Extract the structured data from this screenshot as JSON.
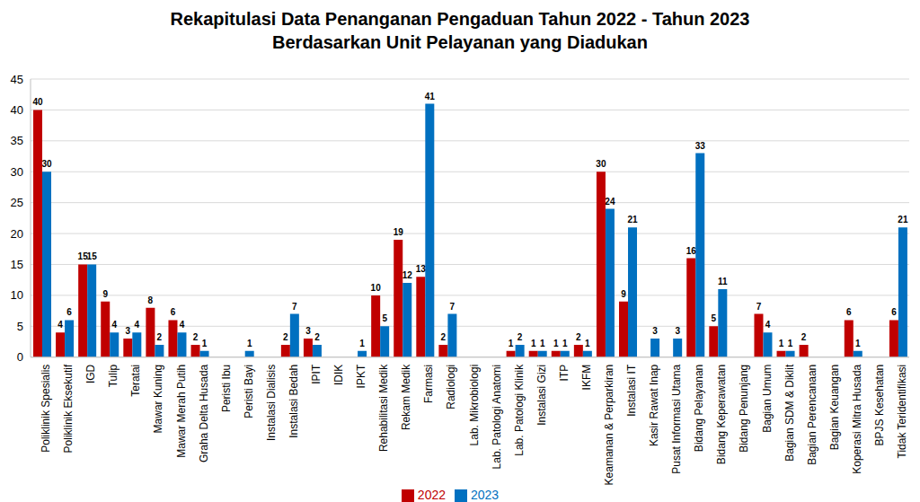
{
  "chart_data": {
    "type": "bar",
    "title": "Rekapitulasi Data Penanganan Pengaduan Tahun 2022 - Tahun 2023",
    "subtitle": "Berdasarkan Unit Pelayanan yang Diadukan",
    "categories": [
      "Poliklinik Spesialis",
      "Poliklinik Eksekutif",
      "IGD",
      "Tulip",
      "Teratai",
      "Mawar Kuning",
      "Mawar Merah Putih",
      "Graha Delta Husada",
      "Peristi Ibu",
      "Peristi Bayi",
      "Instalasi Dialisis",
      "Instalasi Bedah",
      "IPIT",
      "IDIK",
      "IPKT",
      "Rehabilitasi Medik",
      "Rekam Medik",
      "Farmasi",
      "Radiologi",
      "Lab. Mikrobiologi",
      "Lab. Patologi Anatomi",
      "Lab. Patologi Klinik",
      "Instalasi Gizi",
      "ITP",
      "IKFM",
      "Keamanan & Perparkiran",
      "Instalasi IT",
      "Kasir Rawat Inap",
      "Pusat Informasi Utama",
      "Bidang Pelayanan",
      "Bidang Keperawatan",
      "Bidang Penunjang",
      "Bagian Umum",
      "Bagian SDM & Diklit",
      "Bagian Perencanaan",
      "Bagian Keuangan",
      "Koperasi Mitra Husada",
      "BPJS Kesehatan",
      "Tidak Teridentifikasi"
    ],
    "series": [
      {
        "name": "2022",
        "color": "#c00000",
        "values": [
          40,
          4,
          15,
          9,
          3,
          8,
          6,
          2,
          0,
          0,
          0,
          2,
          3,
          0,
          0,
          10,
          19,
          13,
          2,
          0,
          0,
          1,
          1,
          1,
          2,
          30,
          9,
          0,
          0,
          16,
          5,
          0,
          7,
          1,
          2,
          0,
          6,
          0,
          6
        ]
      },
      {
        "name": "2023",
        "color": "#0070c0",
        "values": [
          30,
          6,
          15,
          4,
          4,
          2,
          4,
          1,
          0,
          1,
          0,
          7,
          2,
          0,
          1,
          5,
          12,
          41,
          7,
          0,
          0,
          2,
          1,
          1,
          1,
          24,
          21,
          3,
          3,
          33,
          11,
          0,
          4,
          1,
          0,
          0,
          1,
          0,
          21
        ]
      }
    ],
    "ylim": [
      0,
      45
    ],
    "yticks": [
      0,
      5,
      10,
      15,
      20,
      25,
      30,
      35,
      40,
      45
    ],
    "grid": true,
    "legend": "bottom",
    "data_labels": true
  }
}
